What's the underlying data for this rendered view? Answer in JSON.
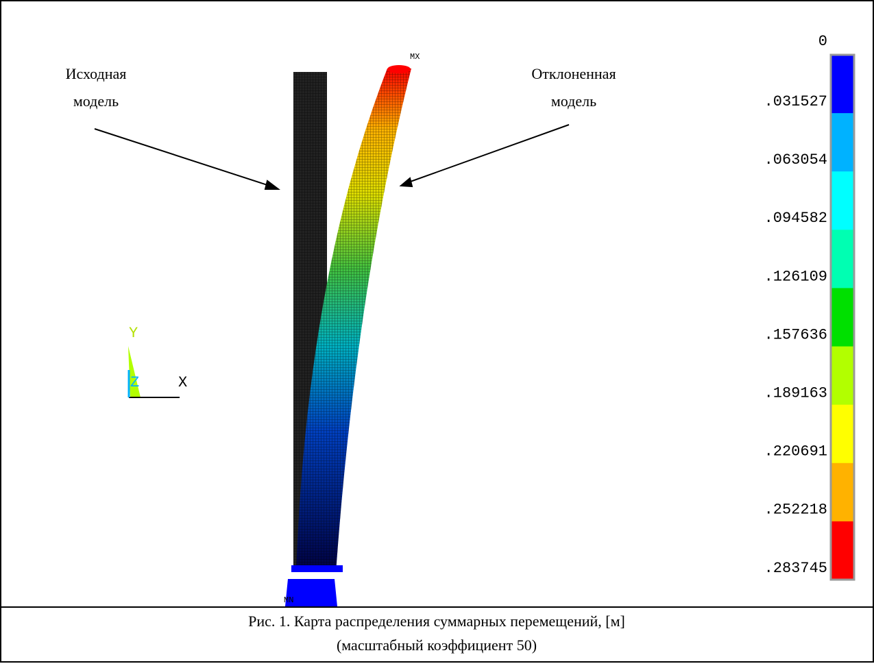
{
  "annotations": {
    "original_model": [
      "Исходная",
      "модель"
    ],
    "deflected_model": [
      "Отклоненная",
      "модель"
    ]
  },
  "markers": {
    "max": "MX",
    "min": "MN"
  },
  "axis_triad": {
    "y": "Y",
    "z": "Z",
    "x": "X"
  },
  "legend": {
    "labels": [
      "0",
      ".031527",
      ".063054",
      ".094582",
      ".126109",
      ".157636",
      ".189163",
      ".220691",
      ".252218",
      ".283745"
    ],
    "colors": [
      "#0000ff",
      "#00b2ff",
      "#00ffff",
      "#00ffb2",
      "#00e000",
      "#b2ff00",
      "#ffff00",
      "#ffb200",
      "#ff0000"
    ]
  },
  "caption": {
    "lines": [
      "Рис. 1. Карта распределения суммарных перемещений, [м]",
      "(масштабный коэффициент 50)"
    ]
  }
}
